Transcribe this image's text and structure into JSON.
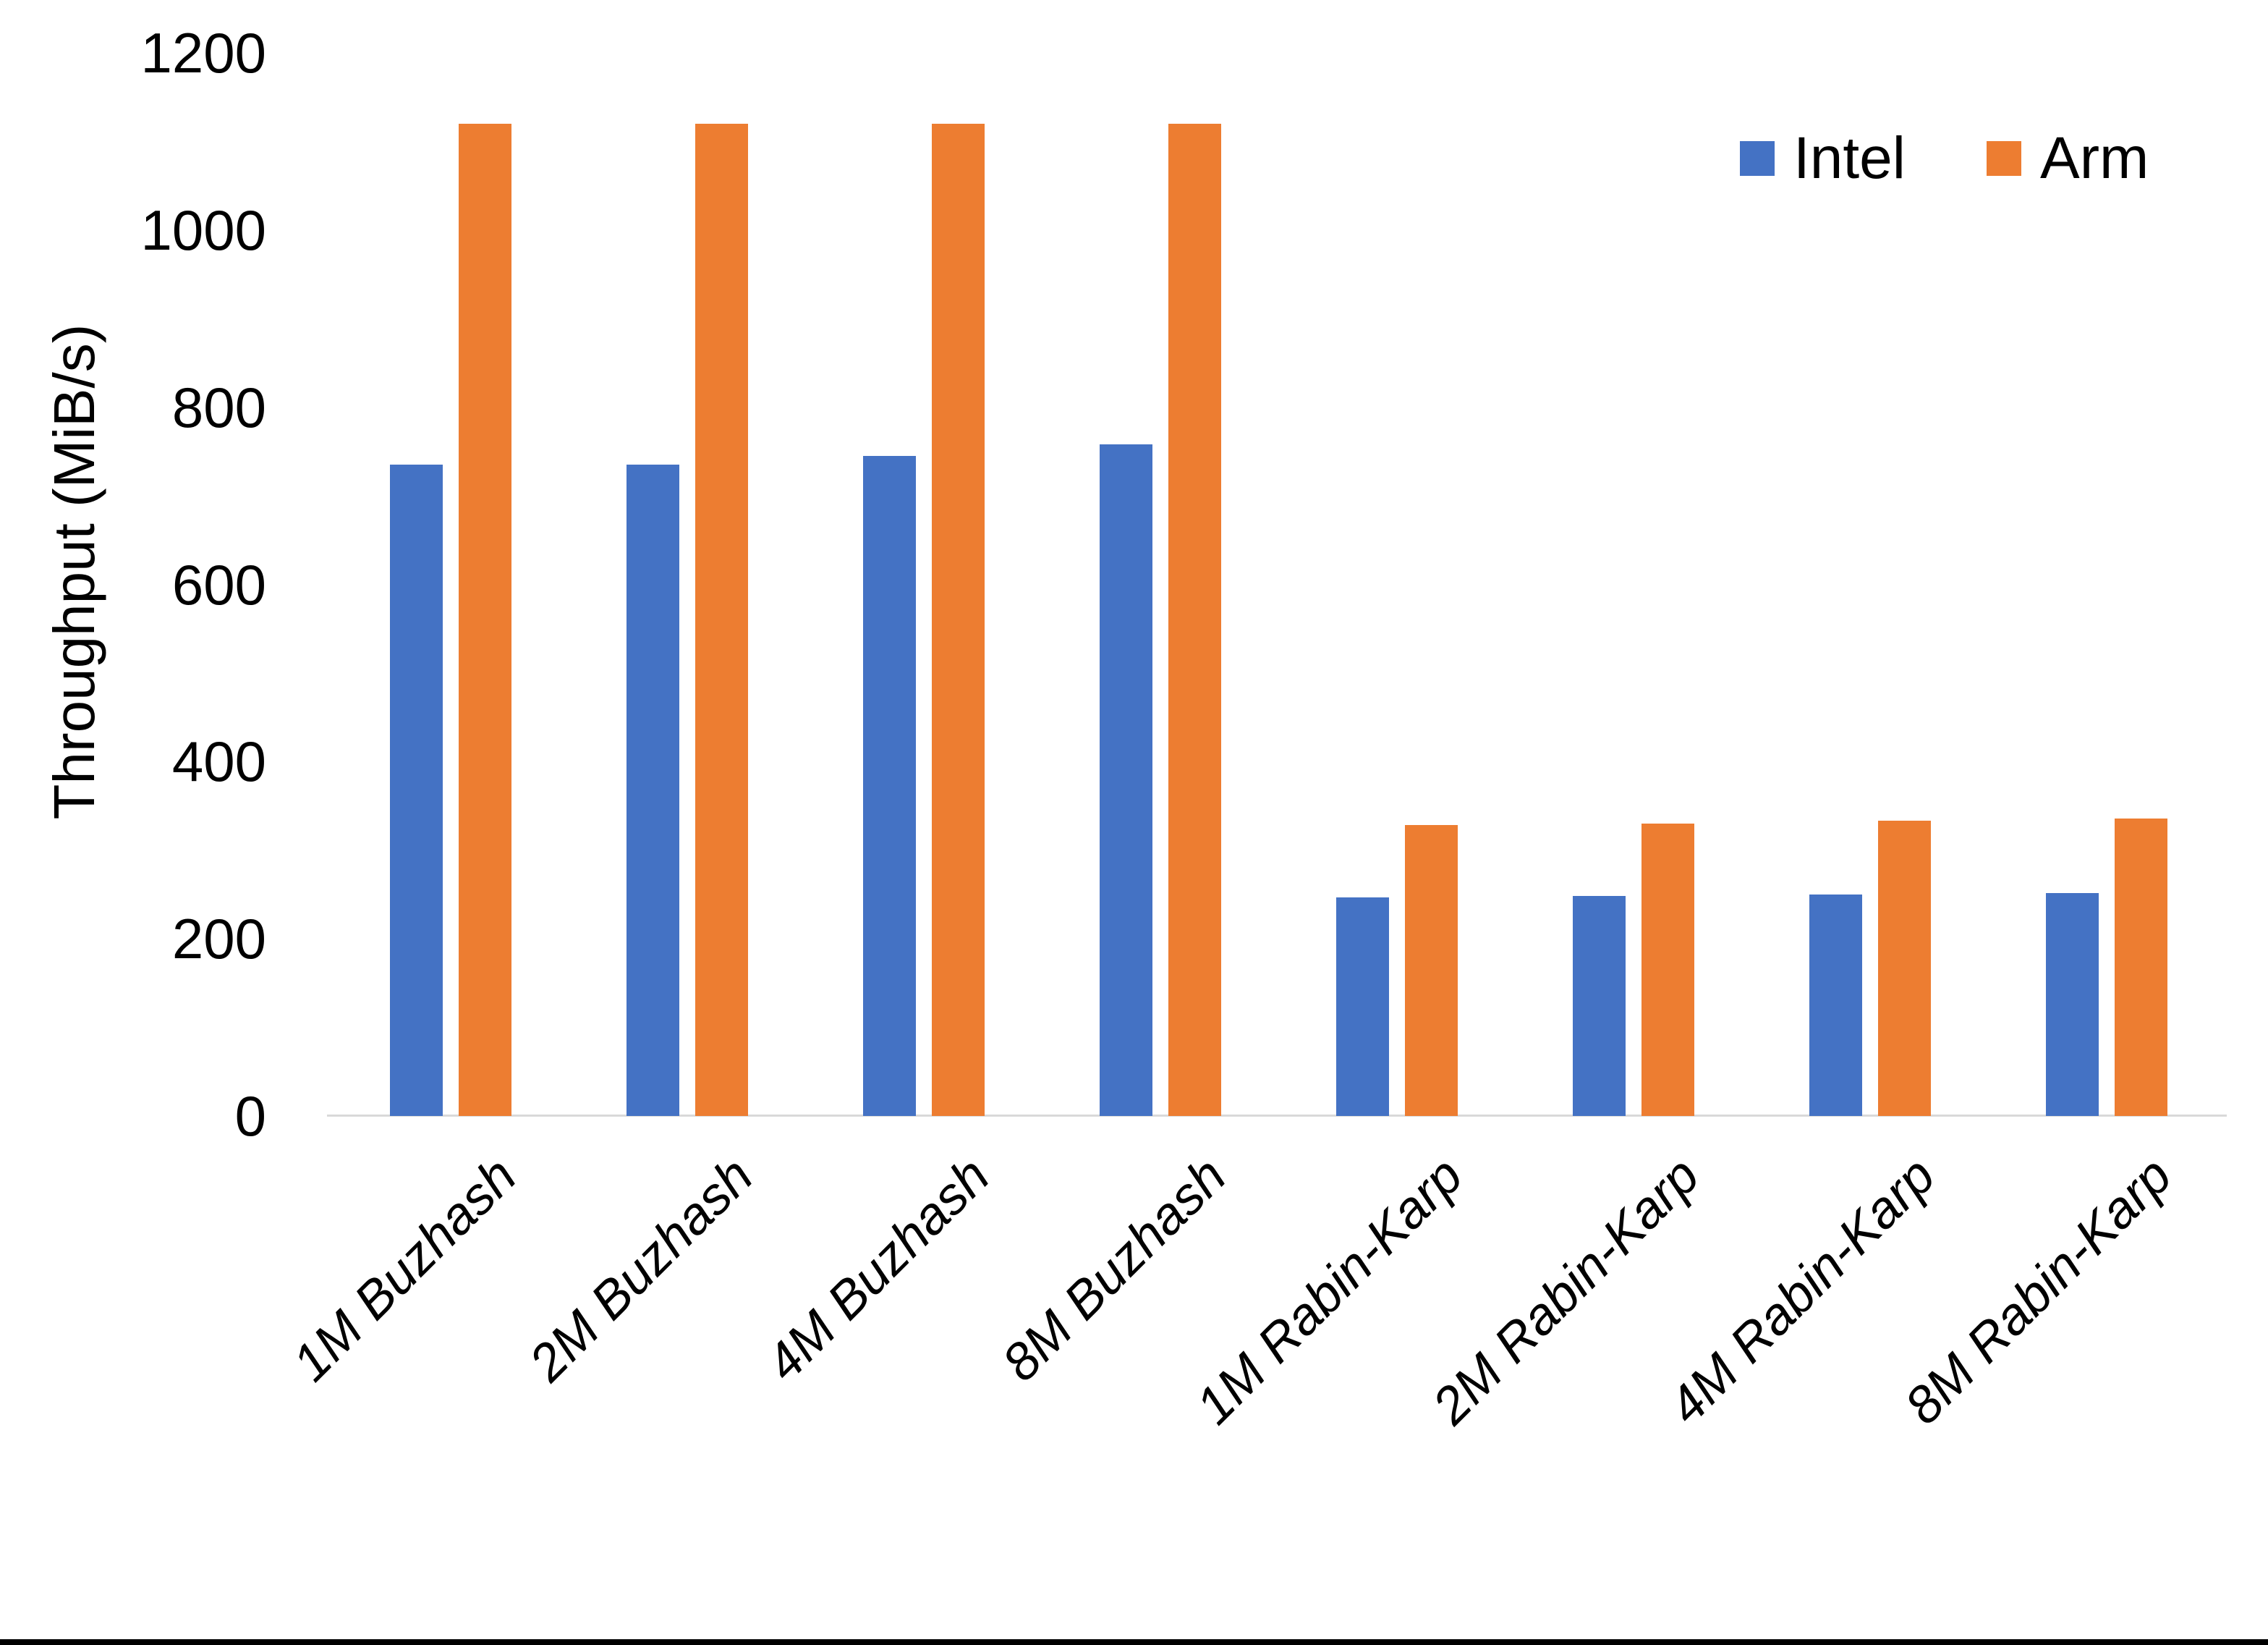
{
  "chart_data": {
    "type": "bar",
    "title": "",
    "categories": [
      "1M Buzhash",
      "2M Buzhash",
      "4M Buzhash",
      "8M Buzhash",
      "1M Rabin-Karp",
      "2M Rabin-Karp",
      "4M Rabin-Karp",
      "8M Rabin-Karp"
    ],
    "series": [
      {
        "name": "Intel",
        "color": "#4472C4",
        "values": [
          735,
          735,
          745,
          758,
          247,
          248,
          250,
          252
        ]
      },
      {
        "name": "Arm",
        "color": "#ED7D31",
        "values": [
          1120,
          1120,
          1120,
          1120,
          328,
          330,
          333,
          336
        ]
      }
    ],
    "xlabel": "",
    "ylabel": "Throughput (MiB/s)",
    "ylim": [
      0,
      1200
    ],
    "yticks": [
      0,
      200,
      400,
      600,
      800,
      1000,
      1200
    ],
    "grid": false,
    "legend_position": "top-right",
    "x_tick_rotation_deg": 45,
    "x_tick_style": "italic"
  },
  "colors": {
    "axis_line": "#D9D9D9",
    "frame_bottom_border": "#000000",
    "background": "#FFFFFF",
    "text": "#000000"
  }
}
